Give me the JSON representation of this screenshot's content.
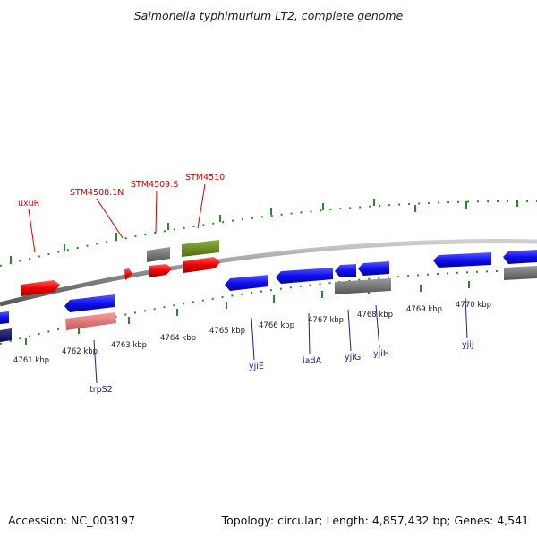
{
  "header": {
    "title": "Salmonella typhimurium LT2, complete genome"
  },
  "footer": {
    "accession": "Accession: NC_003197",
    "topology": "Topology: circular; Length: 4,857,432 bp; Genes: 4,541"
  },
  "scale_labels": [
    "4761 kbp",
    "4762 kbp",
    "4763 kbp",
    "4764 kbp",
    "4765 kbp",
    "4766 kbp",
    "4767 kbp",
    "4768 kbp",
    "4769 kbp",
    "4770 kbp"
  ],
  "gene_labels": {
    "uxuR": "uxuR",
    "stm4508": "STM4508.1N",
    "stm4509": "STM4509.S",
    "stm4510": "STM4510",
    "trpS2": "trpS2",
    "yjiE": "yjiE",
    "iadA": "iadA",
    "yjiG": "yjiG",
    "yjiH": "yjiH",
    "yjiJ": "yjiJ"
  },
  "colors": {
    "forward_gene": "#ee0000",
    "reverse_gene": "#1010ee",
    "pseudo_gene": "#707070",
    "rna_gene": "#6a8a20",
    "reverse_light": "#e87878",
    "backbone": "#888888",
    "tick": "#2a8a2a"
  }
}
